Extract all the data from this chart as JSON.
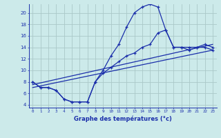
{
  "xlabel": "Graphe des températures (°c)",
  "bg_color": "#cceaea",
  "grid_color": "#aac8c8",
  "line_color": "#1a2eaa",
  "xlim": [
    -0.5,
    23.5
  ],
  "ylim": [
    3.5,
    21.5
  ],
  "xticks": [
    0,
    1,
    2,
    3,
    4,
    5,
    6,
    7,
    8,
    9,
    10,
    11,
    12,
    13,
    14,
    15,
    16,
    17,
    18,
    19,
    20,
    21,
    22,
    23
  ],
  "yticks": [
    4,
    6,
    8,
    10,
    12,
    14,
    16,
    18,
    20
  ],
  "line1_x": [
    0,
    1,
    2,
    3,
    4,
    5,
    6,
    7,
    8,
    9,
    10,
    11,
    12,
    13,
    14,
    15,
    16,
    17,
    18,
    19,
    20,
    21,
    22,
    23
  ],
  "line1_y": [
    8.0,
    7.0,
    7.0,
    6.5,
    5.0,
    4.5,
    4.5,
    4.5,
    8.0,
    10.0,
    12.5,
    14.5,
    17.5,
    20.0,
    21.0,
    21.5,
    21.0,
    17.0,
    14.0,
    14.0,
    13.5,
    14.0,
    14.0,
    13.5
  ],
  "line2_x": [
    0,
    1,
    2,
    3,
    4,
    5,
    6,
    7,
    8,
    9,
    10,
    11,
    12,
    13,
    14,
    15,
    16,
    17,
    18,
    19,
    20,
    21,
    22,
    23
  ],
  "line2_y": [
    8.0,
    7.0,
    7.0,
    6.5,
    5.0,
    4.5,
    4.5,
    4.5,
    8.0,
    9.5,
    10.5,
    11.5,
    12.5,
    13.0,
    14.0,
    14.5,
    16.5,
    17.0,
    14.0,
    14.0,
    14.0,
    14.0,
    14.5,
    14.0
  ],
  "line3_x": [
    0,
    23
  ],
  "line3_y": [
    7.5,
    14.5
  ],
  "line4_x": [
    0,
    23
  ],
  "line4_y": [
    7.0,
    13.5
  ]
}
